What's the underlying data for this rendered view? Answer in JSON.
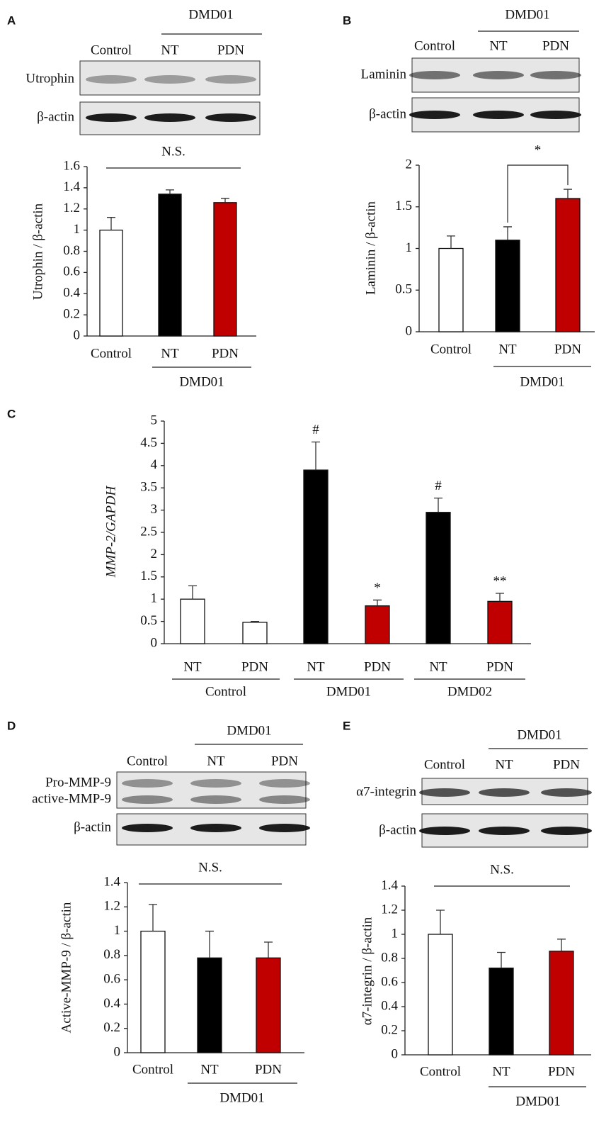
{
  "chart_data": [
    {
      "label": "A",
      "type": "bar",
      "blot": {
        "group": "DMD01",
        "lanes": [
          "Control",
          "NT",
          "PDN"
        ],
        "rows": [
          "Utrophin",
          "β-actin"
        ]
      },
      "annotation": "N.S.",
      "ylabel": "Utrophin / β-actin",
      "categories": [
        "Control",
        "NT",
        "PDN"
      ],
      "group": "DMD01",
      "values": [
        1.0,
        1.34,
        1.26
      ],
      "errors": [
        0.12,
        0.04,
        0.04
      ],
      "colors": [
        "#ffffff",
        "#000000",
        "#c00000"
      ],
      "ylim": [
        0,
        1.6
      ],
      "yticks": [
        0,
        0.2,
        0.4,
        0.6,
        0.8,
        1,
        1.2,
        1.4,
        1.6
      ]
    },
    {
      "label": "B",
      "type": "bar",
      "blot": {
        "group": "DMD01",
        "lanes": [
          "Control",
          "NT",
          "PDN"
        ],
        "rows": [
          "Laminin",
          "β-actin"
        ]
      },
      "annotation": "*",
      "ylabel": "Laminin / β-actin",
      "categories": [
        "Control",
        "NT",
        "PDN"
      ],
      "group": "DMD01",
      "values": [
        1.0,
        1.1,
        1.6
      ],
      "errors": [
        0.15,
        0.16,
        0.11
      ],
      "colors": [
        "#ffffff",
        "#000000",
        "#c00000"
      ],
      "ylim": [
        0,
        2
      ],
      "yticks": [
        0,
        0.5,
        1,
        1.5,
        2
      ]
    },
    {
      "label": "C",
      "type": "bar",
      "ylabel": "MMP-2/GAPDH",
      "groups": [
        {
          "name": "Control",
          "categories": [
            "NT",
            "PDN"
          ]
        },
        {
          "name": "DMD01",
          "categories": [
            "NT",
            "PDN"
          ]
        },
        {
          "name": "DMD02",
          "categories": [
            "NT",
            "PDN"
          ]
        }
      ],
      "values": [
        1.0,
        0.48,
        3.9,
        0.85,
        2.95,
        0.95
      ],
      "errors": [
        0.3,
        0.02,
        0.63,
        0.13,
        0.32,
        0.18
      ],
      "annotations": [
        null,
        null,
        "#",
        "*",
        "#",
        "**"
      ],
      "colors": [
        "#ffffff",
        "#ffffff",
        "#000000",
        "#c00000",
        "#000000",
        "#c00000"
      ],
      "ylim": [
        0,
        5
      ],
      "yticks": [
        0,
        0.5,
        1,
        1.5,
        2,
        2.5,
        3,
        3.5,
        4,
        4.5,
        5
      ]
    },
    {
      "label": "D",
      "type": "bar",
      "blot": {
        "group": "DMD01",
        "lanes": [
          "Control",
          "NT",
          "PDN"
        ],
        "rows": [
          "Pro-MMP-9",
          "active-MMP-9",
          "β-actin"
        ]
      },
      "annotation": "N.S.",
      "ylabel": "Active-MMP-9 / β-actin",
      "categories": [
        "Control",
        "NT",
        "PDN"
      ],
      "group": "DMD01",
      "values": [
        1.0,
        0.78,
        0.78
      ],
      "errors": [
        0.22,
        0.22,
        0.13
      ],
      "colors": [
        "#ffffff",
        "#000000",
        "#c00000"
      ],
      "ylim": [
        0,
        1.4
      ],
      "yticks": [
        0,
        0.2,
        0.4,
        0.6,
        0.8,
        1,
        1.2,
        1.4
      ]
    },
    {
      "label": "E",
      "type": "bar",
      "blot": {
        "group": "DMD01",
        "lanes": [
          "Control",
          "NT",
          "PDN"
        ],
        "rows": [
          "α7-integrin",
          "β-actin"
        ]
      },
      "annotation": "N.S.",
      "ylabel": "α7-integrin / β-actin",
      "categories": [
        "Control",
        "NT",
        "PDN"
      ],
      "group": "DMD01",
      "values": [
        1.0,
        0.72,
        0.86
      ],
      "errors": [
        0.2,
        0.13,
        0.1
      ],
      "colors": [
        "#ffffff",
        "#000000",
        "#c00000"
      ],
      "ylim": [
        0,
        1.4
      ],
      "yticks": [
        0,
        0.2,
        0.4,
        0.6,
        0.8,
        1,
        1.2,
        1.4
      ]
    }
  ]
}
